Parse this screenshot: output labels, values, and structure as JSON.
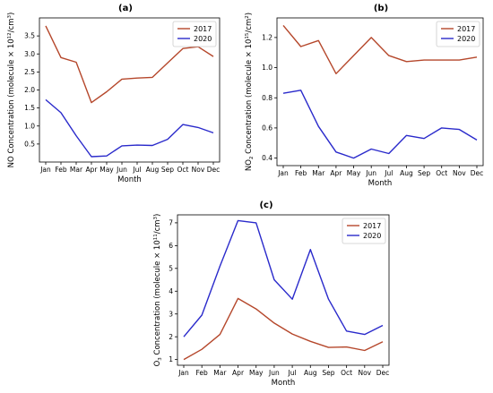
{
  "chart_data": [
    {
      "panel_label": "(a)",
      "type": "line",
      "categories": [
        "Jan",
        "Feb",
        "Mar",
        "Apr",
        "May",
        "Jun",
        "Jul",
        "Aug",
        "Sep",
        "Oct",
        "Nov",
        "Dec"
      ],
      "ylabel_main": "NO Concentration (molecule × 10",
      "ylabel_sup": "12",
      "ylabel_end": "/cm",
      "ylabel_sup2": "3",
      "ylabel_close": ")",
      "xlabel": "Month",
      "ylim": [
        0,
        4
      ],
      "yticks": [
        0.5,
        1.0,
        1.5,
        2.0,
        2.5,
        3.0,
        3.5
      ],
      "ytick_labels": [
        "0.5",
        "1.0",
        "1.5",
        "2.0",
        "2.5",
        "3.0",
        "3.5"
      ],
      "legend_position": "upper-right",
      "series": [
        {
          "name": "2017",
          "color": "#b5472b",
          "values": [
            3.78,
            2.9,
            2.77,
            1.65,
            1.95,
            2.3,
            2.33,
            2.35,
            2.75,
            3.15,
            3.2,
            2.93
          ]
        },
        {
          "name": "2020",
          "color": "#2a2acb",
          "values": [
            1.73,
            1.37,
            0.73,
            0.15,
            0.17,
            0.45,
            0.47,
            0.46,
            0.63,
            1.04,
            0.96,
            0.81
          ]
        }
      ]
    },
    {
      "panel_label": "(b)",
      "type": "line",
      "categories": [
        "Jan",
        "Feb",
        "Mar",
        "Apr",
        "May",
        "Jun",
        "Jul",
        "Aug",
        "Sep",
        "Oct",
        "Nov",
        "Dec"
      ],
      "ylabel_main": "NO",
      "ylabel_sub": "2",
      "ylabel_mid": " Concentration (molecule × 10",
      "ylabel_sup": "15",
      "ylabel_end": "/cm",
      "ylabel_sup2": "2",
      "ylabel_close": ")",
      "xlabel": "Month",
      "ylim": [
        0.35,
        1.33
      ],
      "yticks": [
        0.4,
        0.6,
        0.8,
        1.0,
        1.2
      ],
      "ytick_labels": [
        "0.4",
        "0.6",
        "0.8",
        "1.0",
        "1.2"
      ],
      "legend_position": "upper-right",
      "series": [
        {
          "name": "2017",
          "color": "#b5472b",
          "values": [
            1.28,
            1.14,
            1.18,
            0.96,
            1.08,
            1.2,
            1.08,
            1.04,
            1.05,
            1.05,
            1.05,
            1.07
          ]
        },
        {
          "name": "2020",
          "color": "#2a2acb",
          "values": [
            0.83,
            0.85,
            0.61,
            0.44,
            0.4,
            0.46,
            0.43,
            0.55,
            0.53,
            0.6,
            0.59,
            0.52
          ]
        }
      ]
    },
    {
      "panel_label": "(c)",
      "type": "line",
      "categories": [
        "Jan",
        "Feb",
        "Mar",
        "Apr",
        "May",
        "Jun",
        "Jul",
        "Aug",
        "Sep",
        "Oct",
        "Nov",
        "Dec"
      ],
      "ylabel_main": "O",
      "ylabel_sub": "3",
      "ylabel_mid": " Concentration (molecule × 10",
      "ylabel_sup": "11",
      "ylabel_end": "/cm",
      "ylabel_sup2": "3",
      "ylabel_close": ")",
      "xlabel": "Month",
      "ylim": [
        0.75,
        7.35
      ],
      "yticks": [
        1,
        2,
        3,
        4,
        5,
        6,
        7
      ],
      "ytick_labels": [
        "1",
        "2",
        "3",
        "4",
        "5",
        "6",
        "7"
      ],
      "legend_position": "upper-right",
      "series": [
        {
          "name": "2017",
          "color": "#b5472b",
          "values": [
            1.0,
            1.45,
            2.1,
            3.68,
            3.22,
            2.6,
            2.12,
            1.8,
            1.53,
            1.55,
            1.4,
            1.78
          ]
        },
        {
          "name": "2020",
          "color": "#2a2acb",
          "values": [
            2.0,
            2.95,
            5.1,
            7.1,
            7.0,
            4.5,
            3.65,
            5.83,
            3.65,
            2.25,
            2.1,
            2.5
          ]
        }
      ]
    }
  ]
}
